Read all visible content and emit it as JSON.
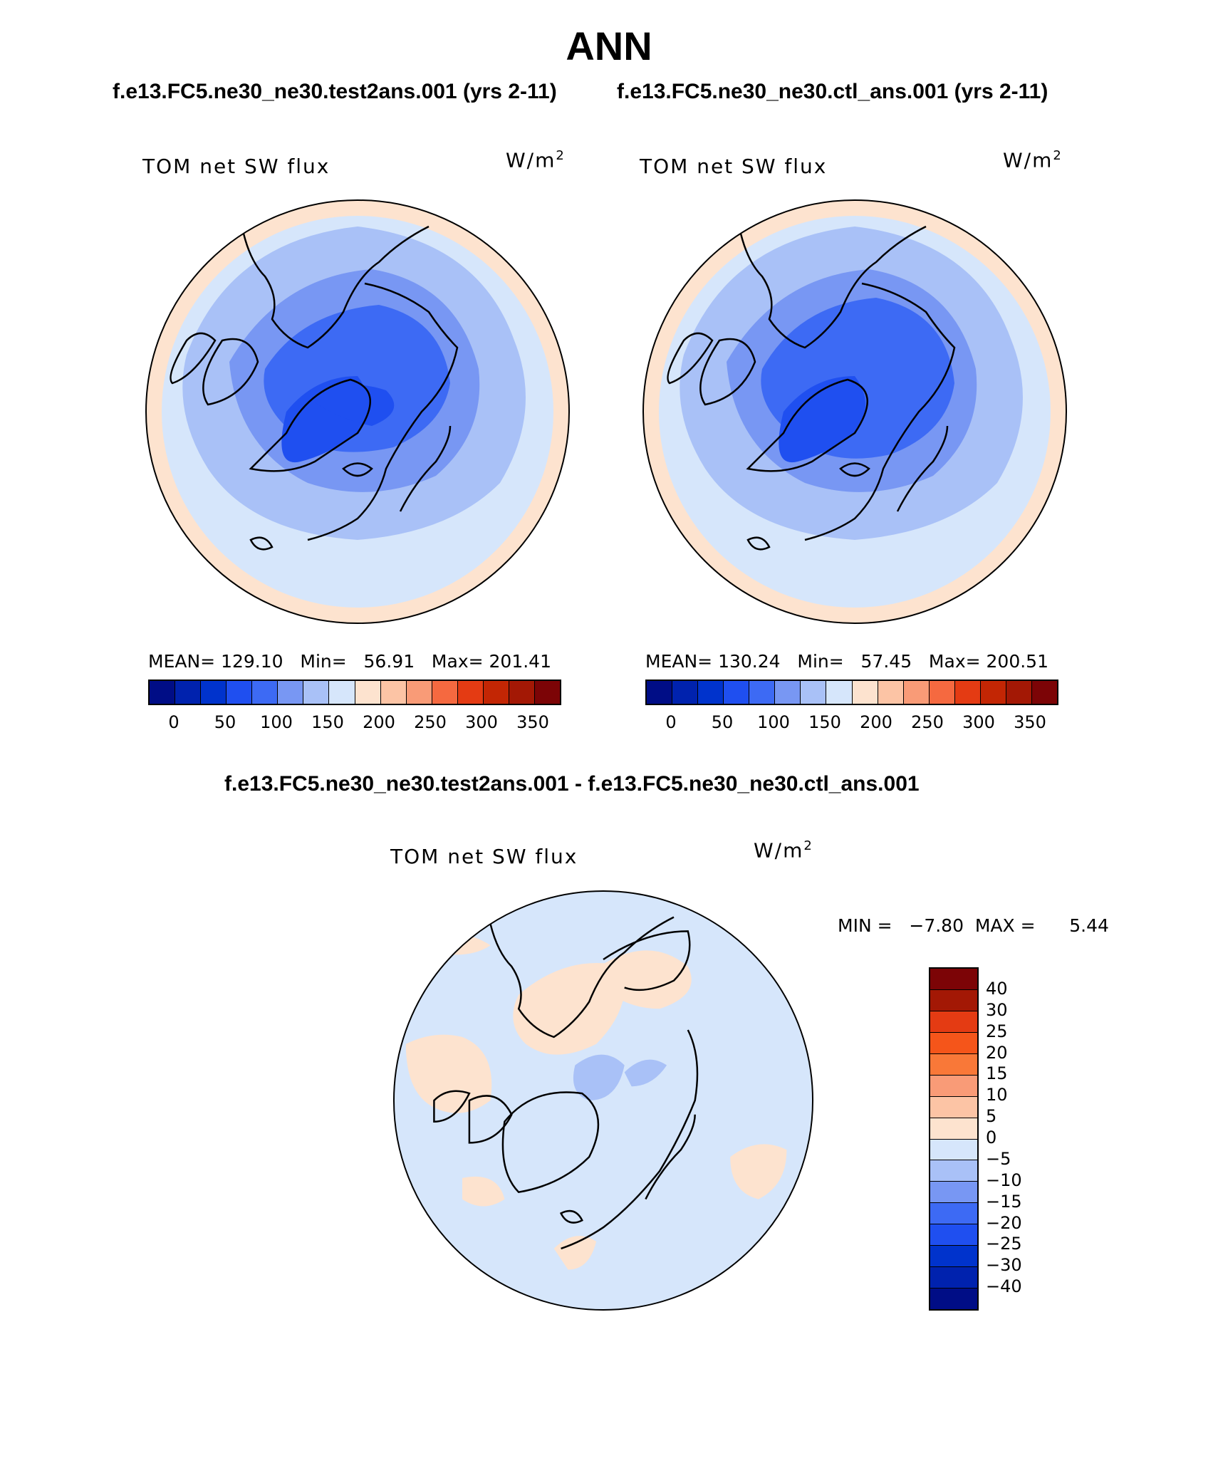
{
  "title": "ANN",
  "subtitles": {
    "left": "f.e13.FC5.ne30_ne30.test2ans.001 (yrs 2-11)",
    "right": "f.e13.FC5.ne30_ne30.ctl_ans.001 (yrs 2-11)",
    "diff": "f.e13.FC5.ne30_ne30.test2ans.001 - f.e13.FC5.ne30_ne30.ctl_ans.001"
  },
  "panels": {
    "test": {
      "variable": "TOM net SW flux",
      "units_base": "W/m",
      "units_exp": "2",
      "stats": "MEAN= 129.10   Min=   56.91   Max= 201.41"
    },
    "ctl": {
      "variable": "TOM net SW flux",
      "units_base": "W/m",
      "units_exp": "2",
      "stats": "MEAN= 130.24   Min=   57.45   Max= 200.51"
    },
    "diff": {
      "variable": "TOM net SW flux",
      "units_base": "W/m",
      "units_exp": "2",
      "stats": "MIN =   −7.80  MAX =      5.44"
    }
  },
  "colorbar_abs": {
    "colors": [
      "#000d86",
      "#0022ae",
      "#0033cc",
      "#1f4ff0",
      "#3d6af4",
      "#7897f3",
      "#a9c1f7",
      "#d6e6fb",
      "#fde3cf",
      "#fcc4a5",
      "#f99b77",
      "#f56940",
      "#e43b13",
      "#c32604",
      "#a31805",
      "#7c0406"
    ],
    "labels": [
      "0",
      "50",
      "100",
      "150",
      "200",
      "250",
      "300",
      "350"
    ]
  },
  "colorbar_diff": {
    "colors": [
      "#7c0406",
      "#a31805",
      "#e43b13",
      "#f5551a",
      "#f97838",
      "#f99b77",
      "#fcc4a5",
      "#fde3cf",
      "#d6e6fb",
      "#a9c1f7",
      "#7897f3",
      "#3d6af4",
      "#1f4ff0",
      "#0033cc",
      "#0022ae",
      "#000d86"
    ],
    "labels": [
      "40",
      "30",
      "25",
      "20",
      "15",
      "10",
      "5",
      "0",
      "−5",
      "−10",
      "−15",
      "−20",
      "−25",
      "−30",
      "−40"
    ]
  },
  "map_colors": {
    "outer_warm": "#fde3cf",
    "light": "#d6e6fb",
    "mid": "#a9c1f7",
    "mid2": "#7897f3",
    "strong": "#3d6af4",
    "deep": "#1f4ff0",
    "coast": "#000000"
  }
}
